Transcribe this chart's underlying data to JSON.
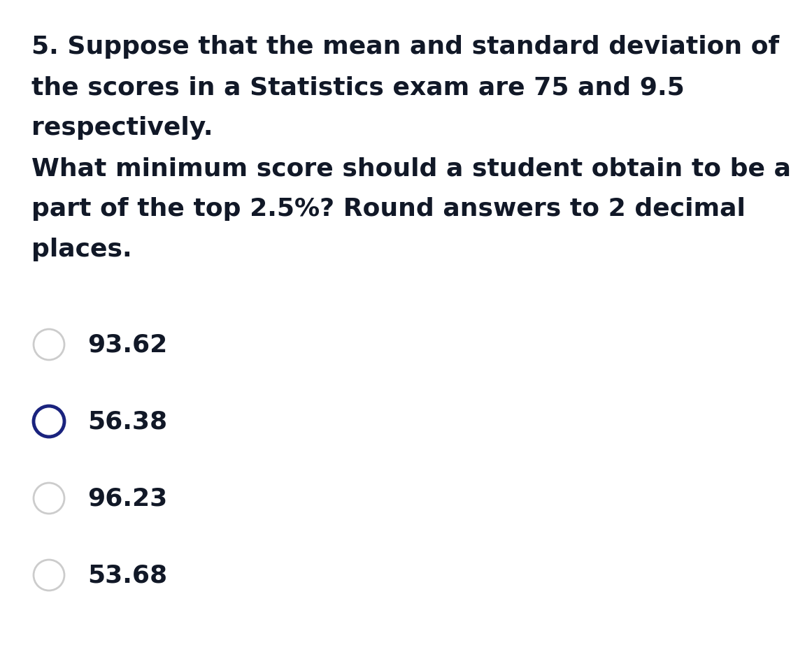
{
  "background_color": "#ffffff",
  "question_lines": [
    "5. Suppose that the mean and standard deviation of",
    "the scores in a Statistics exam are 75 and 9.5",
    "respectively.",
    "What minimum score should a student obtain to be a",
    "part of the top 2.5%? Round answers to 2 decimal",
    "places."
  ],
  "options": [
    "93.62",
    "56.38",
    "96.23",
    "53.68"
  ],
  "selected_index": 1,
  "text_color": "#111827",
  "circle_default_color": "#cccccc",
  "circle_selected_color": "#1a237e",
  "circle_default_linewidth": 2.0,
  "circle_selected_linewidth": 3.5,
  "question_fontsize": 26,
  "option_fontsize": 26
}
